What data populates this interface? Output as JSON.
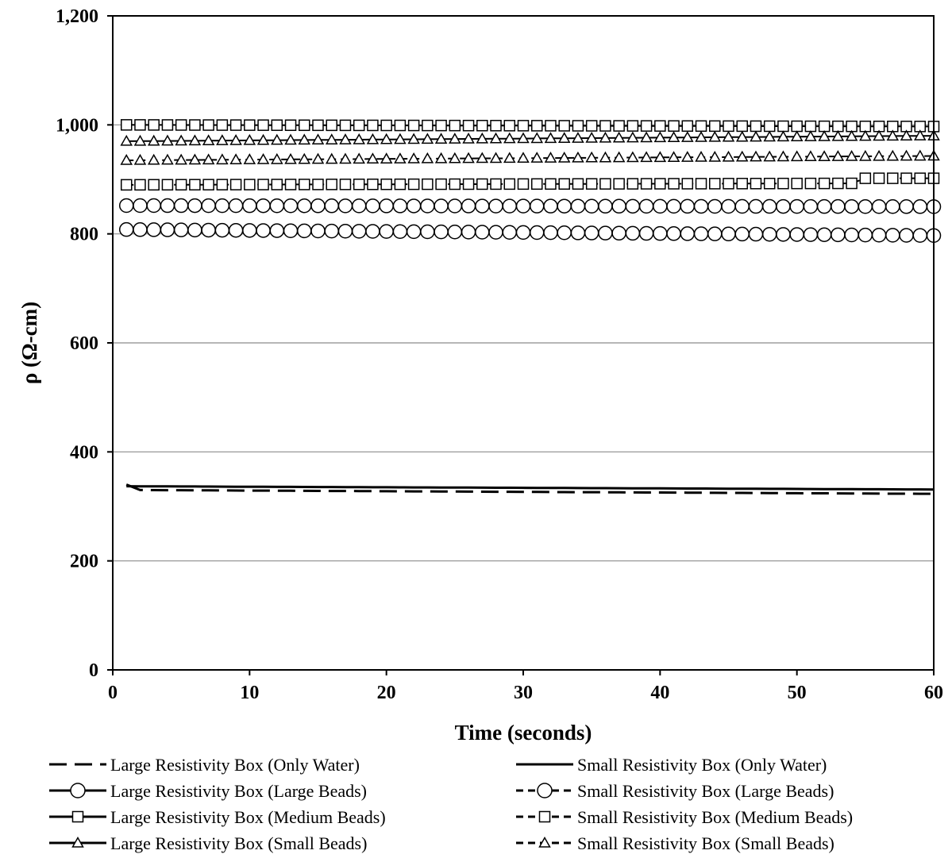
{
  "chart_data": {
    "type": "line",
    "title": "",
    "xlabel": "Time (seconds)",
    "ylabel": "ρ (Ω-cm)",
    "xlim": [
      0,
      60
    ],
    "ylim": [
      0,
      1200
    ],
    "xticks": [
      0,
      10,
      20,
      30,
      40,
      50,
      60
    ],
    "yticks": [
      0,
      200,
      400,
      600,
      800,
      1000,
      1200
    ],
    "xtick_labels": [
      "0",
      "10",
      "20",
      "30",
      "40",
      "50",
      "60"
    ],
    "ytick_labels": [
      "0",
      "200",
      "400",
      "600",
      "800",
      "1,000",
      "1,200"
    ],
    "grid": "horizontal",
    "legend_position": "bottom",
    "series": [
      {
        "name": "Large Resistivity Box (Only Water)",
        "line": "longdash",
        "marker": "none",
        "color": "#000000",
        "start": 340,
        "end": 323,
        "early_drop": 330
      },
      {
        "name": "Small Resistivity Box (Only Water)",
        "line": "solid",
        "marker": "none",
        "color": "#000000",
        "start": 337,
        "end": 331
      },
      {
        "name": "Large Resistivity Box (Large Beads)",
        "line": "solid",
        "marker": "circle",
        "color": "#000000",
        "start": 808,
        "end": 797
      },
      {
        "name": "Small Resistivity Box (Large Beads)",
        "line": "dash",
        "marker": "circle",
        "color": "#000000",
        "start": 852,
        "end": 850
      },
      {
        "name": "Large Resistivity Box (Medium Beads)",
        "line": "solid",
        "marker": "square",
        "color": "#000000",
        "start": 1000,
        "end": 997
      },
      {
        "name": "Small Resistivity Box (Medium Beads)",
        "line": "dash",
        "marker": "square",
        "color": "#000000",
        "start": 890,
        "end": 893,
        "jump_at": 55,
        "after_jump": 902
      },
      {
        "name": "Large Resistivity Box (Small Beads)",
        "line": "solid",
        "marker": "triangle",
        "color": "#000000",
        "start": 970,
        "end": 980
      },
      {
        "name": "Small Resistivity Box (Small Beads)",
        "line": "dash",
        "marker": "triangle",
        "color": "#000000",
        "start": 935,
        "end": 943
      }
    ]
  }
}
